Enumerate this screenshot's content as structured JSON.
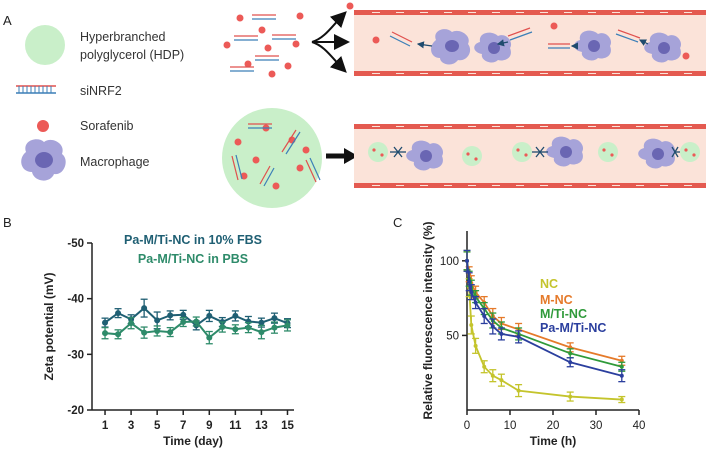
{
  "panels": {
    "a": "A",
    "b": "B",
    "c": "C"
  },
  "legend": [
    {
      "label_line1": "Hyperbranched",
      "label_line2": "polyglycerol (HDP)"
    },
    {
      "label_line1": "siNRF2"
    },
    {
      "label_line1": "Sorafenib"
    },
    {
      "label_line1": "Macrophage"
    }
  ],
  "colors": {
    "hdp_fill": "#c9efc9",
    "sirna_red": "#e0504e",
    "sirna_blue": "#3c7fb7",
    "drug_red": "#ec5a57",
    "macrophage": "#8a86c9",
    "macrophage_nucleus": "#5b57a6",
    "vessel_fill": "#fbe3d9",
    "vessel_wall": "#e45a50",
    "arrow_dark": "#1f4b6e"
  },
  "chart_data": [
    {
      "type": "line",
      "title": "",
      "xlabel": "Time (day)",
      "ylabel": "Zeta potential (mV)",
      "xlim": [
        0,
        15.5
      ],
      "ylim": [
        -50,
        -20
      ],
      "ytick_labels": [
        "-50",
        "-40",
        "-30",
        "-20"
      ],
      "yticks": [
        -50,
        -40,
        -30,
        -20
      ],
      "xticks": [
        1,
        3,
        5,
        7,
        9,
        11,
        13,
        15
      ],
      "xtick_labels": [
        "1",
        "3",
        "5",
        "7",
        "9",
        "11",
        "13",
        "15"
      ],
      "x": [
        1,
        2,
        3,
        4,
        5,
        6,
        7,
        8,
        9,
        10,
        11,
        12,
        13,
        14,
        15
      ],
      "series": [
        {
          "name": "Pa-M/Ti-NC in 10% FBS",
          "color": "#1f5f73",
          "values": [
            -35.7,
            -37.4,
            -36.3,
            -38.3,
            -36.1,
            -37.0,
            -37.1,
            -35.2,
            -36.9,
            -35.8,
            -36.9,
            -35.9,
            -35.7,
            -36.5,
            -35.6
          ],
          "errors": [
            0.8,
            0.8,
            0.8,
            1.6,
            1.5,
            0.8,
            0.8,
            0.8,
            1.0,
            0.8,
            0.9,
            0.9,
            0.8,
            0.9,
            0.8
          ]
        },
        {
          "name": "Pa-M/Ti-NC in PBS",
          "color": "#2e8b6a",
          "values": [
            -33.8,
            -33.6,
            -35.6,
            -33.9,
            -34.2,
            -34.0,
            -35.8,
            -35.9,
            -33.0,
            -34.9,
            -34.5,
            -34.8,
            -34.0,
            -34.8,
            -35.2
          ],
          "errors": [
            1.0,
            0.8,
            1.0,
            1.0,
            0.9,
            0.8,
            0.8,
            0.8,
            1.1,
            0.9,
            0.8,
            0.9,
            1.2,
            1.0,
            1.0
          ]
        }
      ]
    },
    {
      "type": "line",
      "title": "",
      "xlabel": "Time (h)",
      "ylabel": "Relative fluorescence  intensity (%)",
      "xlim": [
        0,
        40
      ],
      "ylim": [
        0,
        120
      ],
      "yticks": [
        50,
        100
      ],
      "ytick_labels": [
        "50",
        "100"
      ],
      "xticks": [
        0,
        10,
        20,
        30,
        40
      ],
      "xtick_labels": [
        "0",
        "10",
        "20",
        "30",
        "40"
      ],
      "x": [
        0,
        0.5,
        1,
        2,
        4,
        6,
        8,
        12,
        24,
        36
      ],
      "series": [
        {
          "name": "NC",
          "color": "#c4c42c",
          "values": [
            100,
            82,
            57,
            43,
            29,
            23,
            20,
            13,
            9,
            7
          ],
          "errors": [
            7,
            6,
            6,
            5,
            4,
            4,
            4,
            4,
            3,
            2
          ]
        },
        {
          "name": "M-NC",
          "color": "#e57a2a",
          "values": [
            100,
            91,
            85,
            79,
            72,
            63,
            58,
            54,
            42,
            33
          ],
          "errors": [
            6,
            5,
            5,
            4,
            4,
            5,
            4,
            4,
            3,
            3
          ]
        },
        {
          "name": "M/Ti-NC",
          "color": "#2f9a3a",
          "values": [
            100,
            88,
            82,
            76,
            68,
            60,
            55,
            51,
            38,
            29
          ],
          "errors": [
            6,
            5,
            5,
            4,
            4,
            5,
            4,
            4,
            3,
            3
          ]
        },
        {
          "name": "Pa-M/Ti-NC",
          "color": "#2b3f9e",
          "values": [
            100,
            86,
            79,
            72,
            63,
            56,
            51,
            49,
            32,
            23
          ],
          "errors": [
            7,
            6,
            5,
            4,
            5,
            5,
            4,
            4,
            3,
            4
          ]
        }
      ]
    }
  ]
}
